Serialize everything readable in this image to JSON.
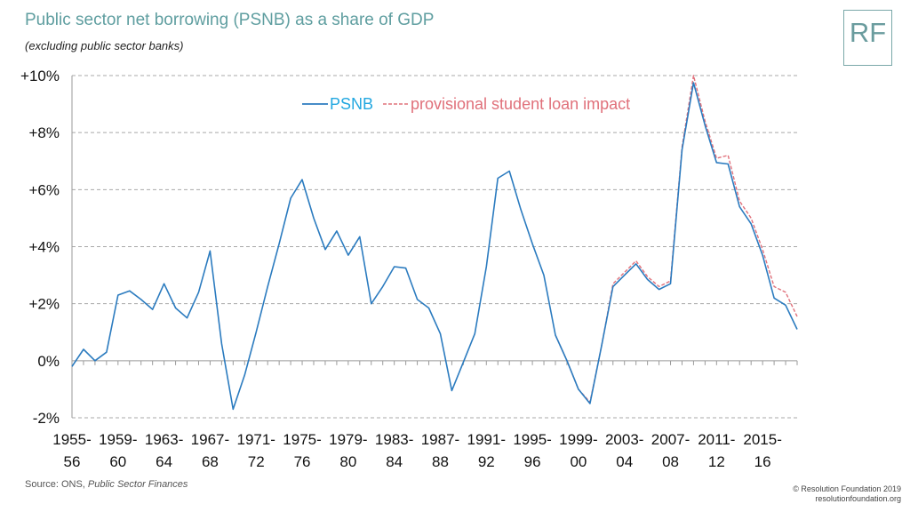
{
  "title": "Public sector net borrowing (PSNB) as a share of GDP",
  "subtitle": "(excluding public sector banks)",
  "logo_text": "RF",
  "source_prefix": "Source: ONS, ",
  "source_italic": "Public Sector Finances",
  "copyright_line1": "© Resolution Foundation 2019",
  "copyright_line2": "resolutionfoundation.org",
  "colors": {
    "psnb": "#2b7bbf",
    "student_loan": "#e0707a",
    "legend_psnb_text": "#22a7e0",
    "gridline": "#a8a8a8",
    "title": "#5f9ea0"
  },
  "chart_data": {
    "type": "line",
    "ylim": [
      -2,
      10
    ],
    "yticks": [
      -2,
      0,
      2,
      4,
      6,
      8,
      10
    ],
    "ytick_labels": [
      "-2%",
      "0%",
      "+2%",
      "+4%",
      "+6%",
      "+8%",
      "+10%"
    ],
    "grid": true,
    "legend_position": "top-center",
    "x": [
      "1955-56",
      "1956-57",
      "1957-58",
      "1958-59",
      "1959-60",
      "1960-61",
      "1961-62",
      "1962-63",
      "1963-64",
      "1964-65",
      "1965-66",
      "1966-67",
      "1967-68",
      "1968-69",
      "1969-70",
      "1970-71",
      "1971-72",
      "1972-73",
      "1973-74",
      "1974-75",
      "1975-76",
      "1976-77",
      "1977-78",
      "1978-79",
      "1979-80",
      "1980-81",
      "1981-82",
      "1982-83",
      "1983-84",
      "1984-85",
      "1985-86",
      "1986-87",
      "1987-88",
      "1988-89",
      "1989-90",
      "1990-91",
      "1991-92",
      "1992-93",
      "1993-94",
      "1994-95",
      "1995-96",
      "1996-97",
      "1997-98",
      "1998-99",
      "1999-00",
      "2000-01",
      "2001-02",
      "2002-03",
      "2003-04",
      "2004-05",
      "2005-06",
      "2006-07",
      "2007-08",
      "2008-09",
      "2009-10",
      "2010-11",
      "2011-12",
      "2012-13",
      "2013-14",
      "2014-15",
      "2015-16",
      "2016-17",
      "2017-18",
      "2018-19"
    ],
    "x_tick_labels_line1": [
      "1955-",
      "1959-",
      "1963-",
      "1967-",
      "1971-",
      "1975-",
      "1979-",
      "1983-",
      "1987-",
      "1991-",
      "1995-",
      "1999-",
      "2003-",
      "2007-",
      "2011-",
      "2015-"
    ],
    "x_tick_labels_line2": [
      "56",
      "60",
      "64",
      "68",
      "72",
      "76",
      "80",
      "84",
      "88",
      "92",
      "96",
      "00",
      "04",
      "08",
      "12",
      "16"
    ],
    "series": [
      {
        "name": "PSNB",
        "values": [
          -0.2,
          0.4,
          0.0,
          0.3,
          2.3,
          2.45,
          2.15,
          1.8,
          2.7,
          1.85,
          1.5,
          2.4,
          3.85,
          0.6,
          -1.7,
          -0.5,
          1.0,
          2.6,
          4.1,
          5.7,
          6.35,
          5.0,
          3.9,
          4.55,
          3.7,
          4.35,
          2.0,
          2.6,
          3.3,
          3.25,
          2.15,
          1.85,
          0.95,
          -1.05,
          -0.05,
          0.95,
          3.3,
          6.4,
          6.65,
          5.3,
          4.1,
          3.0,
          0.9,
          0.0,
          -1.0,
          -1.5,
          0.5,
          2.6,
          3.0,
          3.4,
          2.85,
          2.5,
          2.7,
          7.4,
          9.75,
          8.25,
          6.95,
          6.9,
          5.4,
          4.8,
          3.7,
          2.2,
          1.95,
          1.1
        ]
      },
      {
        "name": "provisional student loan impact",
        "values": [
          null,
          null,
          null,
          null,
          null,
          null,
          null,
          null,
          null,
          null,
          null,
          null,
          null,
          null,
          null,
          null,
          null,
          null,
          null,
          null,
          null,
          null,
          null,
          null,
          null,
          null,
          null,
          null,
          null,
          null,
          null,
          null,
          null,
          null,
          null,
          null,
          null,
          null,
          null,
          null,
          null,
          null,
          0.9,
          0.0,
          -1.0,
          -1.45,
          0.5,
          2.7,
          3.1,
          3.5,
          2.95,
          2.6,
          2.8,
          7.5,
          10.0,
          8.4,
          7.1,
          7.2,
          5.6,
          5.0,
          3.9,
          2.6,
          2.4,
          1.55
        ]
      }
    ]
  }
}
